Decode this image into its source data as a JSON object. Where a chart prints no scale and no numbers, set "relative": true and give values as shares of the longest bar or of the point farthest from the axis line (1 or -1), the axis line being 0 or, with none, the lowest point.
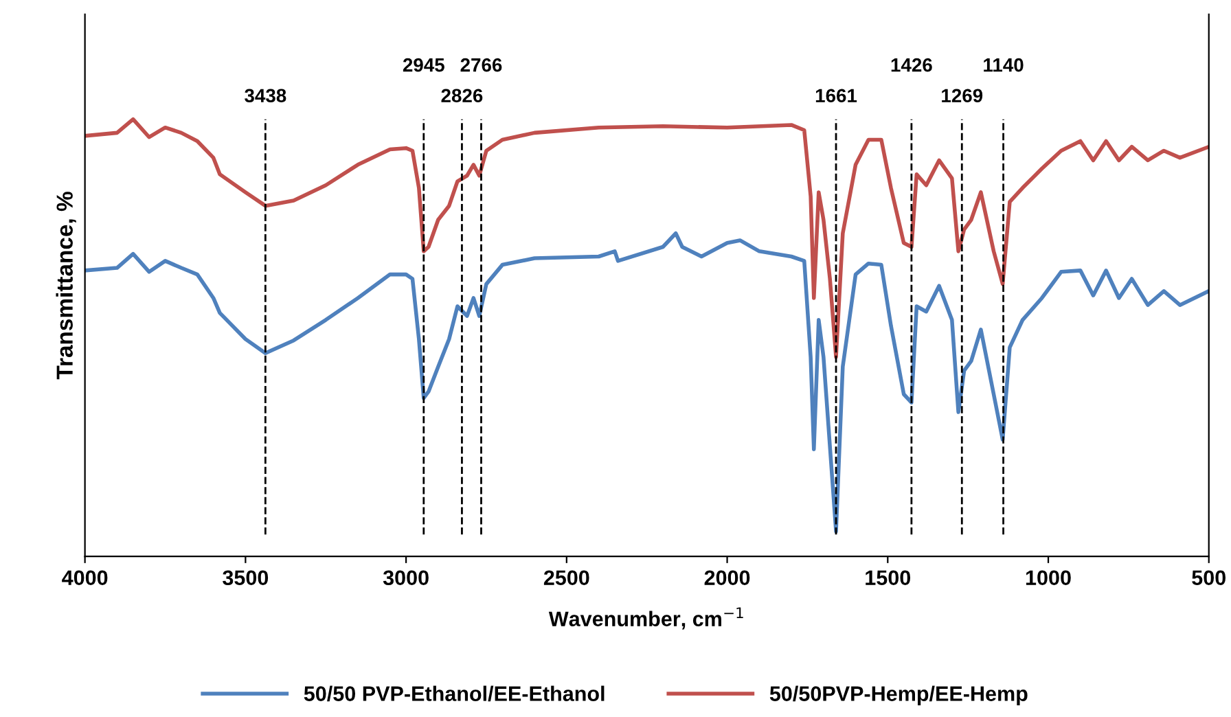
{
  "chart_data": {
    "type": "line",
    "relative": true,
    "xlabel": "Wavenumber, cm$^{−1}$",
    "ylabel": "Transmittance, %",
    "xlim": [
      4000,
      500
    ],
    "xticks": [
      4000,
      3500,
      3000,
      2500,
      2000,
      1500,
      1000,
      500
    ],
    "grid": false,
    "legend": "bottom",
    "marker": "none",
    "line_style": "solid",
    "series": [
      {
        "name": "50/50 PVP-Ethanol/EE-Ethanol",
        "color": "#4f81bd",
        "x": [
          4000,
          3900,
          3850,
          3800,
          3750,
          3700,
          3650,
          3600,
          3580,
          3500,
          3438,
          3350,
          3250,
          3150,
          3050,
          3000,
          2980,
          2960,
          2945,
          2930,
          2900,
          2866,
          2840,
          2810,
          2790,
          2772,
          2750,
          2700,
          2600,
          2400,
          2350,
          2340,
          2200,
          2160,
          2140,
          2080,
          2000,
          1960,
          1900,
          1800,
          1760,
          1740,
          1730,
          1715,
          1700,
          1661,
          1640,
          1600,
          1560,
          1520,
          1490,
          1450,
          1426,
          1410,
          1380,
          1340,
          1300,
          1280,
          1262,
          1240,
          1210,
          1170,
          1142,
          1120,
          1080,
          1020,
          960,
          900,
          860,
          820,
          780,
          740,
          690,
          640,
          590,
          500
        ],
        "values": [
          0.654,
          0.66,
          0.692,
          0.651,
          0.676,
          0.66,
          0.645,
          0.591,
          0.557,
          0.497,
          0.465,
          0.494,
          0.541,
          0.591,
          0.645,
          0.645,
          0.635,
          0.497,
          0.362,
          0.377,
          0.434,
          0.497,
          0.572,
          0.55,
          0.591,
          0.55,
          0.623,
          0.667,
          0.682,
          0.686,
          0.698,
          0.676,
          0.708,
          0.739,
          0.708,
          0.686,
          0.717,
          0.723,
          0.698,
          0.686,
          0.676,
          0.456,
          0.245,
          0.541,
          0.456,
          0.057,
          0.434,
          0.645,
          0.67,
          0.667,
          0.528,
          0.371,
          0.352,
          0.572,
          0.56,
          0.619,
          0.541,
          0.33,
          0.425,
          0.447,
          0.519,
          0.371,
          0.267,
          0.478,
          0.541,
          0.591,
          0.651,
          0.654,
          0.597,
          0.654,
          0.591,
          0.635,
          0.575,
          0.607,
          0.575,
          0.607
        ]
      },
      {
        "name": "50/50PVP-Hemp/EE-Hemp",
        "color": "#c0504d",
        "x": [
          4000,
          3900,
          3850,
          3800,
          3750,
          3700,
          3650,
          3600,
          3580,
          3500,
          3438,
          3350,
          3250,
          3150,
          3050,
          3000,
          2980,
          2960,
          2945,
          2930,
          2900,
          2866,
          2840,
          2810,
          2790,
          2772,
          2750,
          2700,
          2600,
          2400,
          2200,
          2000,
          1800,
          1760,
          1740,
          1730,
          1715,
          1700,
          1680,
          1661,
          1640,
          1600,
          1560,
          1520,
          1490,
          1450,
          1426,
          1410,
          1380,
          1340,
          1300,
          1280,
          1262,
          1240,
          1210,
          1170,
          1142,
          1120,
          1080,
          1020,
          960,
          900,
          860,
          820,
          780,
          740,
          690,
          640,
          590,
          500
        ],
        "values": [
          0.962,
          0.969,
          1.0,
          0.959,
          0.981,
          0.969,
          0.95,
          0.912,
          0.874,
          0.833,
          0.802,
          0.814,
          0.849,
          0.896,
          0.931,
          0.934,
          0.928,
          0.843,
          0.698,
          0.708,
          0.77,
          0.802,
          0.858,
          0.871,
          0.896,
          0.871,
          0.928,
          0.953,
          0.969,
          0.981,
          0.984,
          0.981,
          0.987,
          0.975,
          0.824,
          0.591,
          0.833,
          0.77,
          0.635,
          0.456,
          0.739,
          0.896,
          0.953,
          0.953,
          0.843,
          0.717,
          0.708,
          0.874,
          0.849,
          0.906,
          0.865,
          0.698,
          0.748,
          0.77,
          0.833,
          0.698,
          0.623,
          0.811,
          0.843,
          0.887,
          0.928,
          0.95,
          0.906,
          0.95,
          0.906,
          0.937,
          0.906,
          0.928,
          0.912,
          0.937
        ]
      }
    ],
    "ref_lines": [
      {
        "axis": "x",
        "value": 3438,
        "label": "3438",
        "color": "#000000",
        "line_style": "dashed"
      },
      {
        "axis": "x",
        "value": 2945,
        "label": "2945",
        "color": "#000000",
        "line_style": "dashed"
      },
      {
        "axis": "x",
        "value": 2826,
        "label": "2826",
        "color": "#000000",
        "line_style": "dashed"
      },
      {
        "axis": "x",
        "value": 2766,
        "label": "2766",
        "color": "#000000",
        "line_style": "dashed"
      },
      {
        "axis": "x",
        "value": 1661,
        "label": "1661",
        "color": "#000000",
        "line_style": "dashed"
      },
      {
        "axis": "x",
        "value": 1426,
        "label": "1426",
        "color": "#000000",
        "line_style": "dashed"
      },
      {
        "axis": "x",
        "value": 1269,
        "label": "1269",
        "color": "#000000",
        "line_style": "dashed"
      },
      {
        "axis": "x",
        "value": 1140,
        "label": "1140",
        "color": "#000000",
        "line_style": "dashed"
      }
    ]
  }
}
